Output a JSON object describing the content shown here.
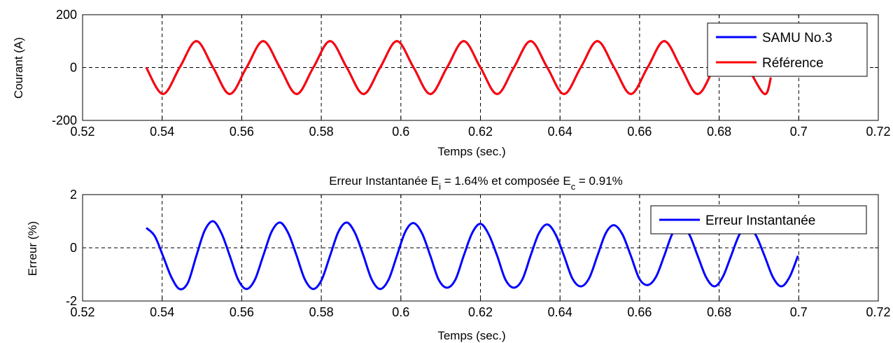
{
  "chart_data": [
    {
      "type": "line",
      "title": "",
      "xlabel": "Temps (sec.)",
      "ylabel": "Courant (A)",
      "xlim": [
        0.52,
        0.72
      ],
      "ylim": [
        -200,
        200
      ],
      "xticks": [
        "0.52",
        "0.54",
        "0.56",
        "0.58",
        "0.6",
        "0.62",
        "0.64",
        "0.66",
        "0.68",
        "0.7",
        "0.72"
      ],
      "yticks": [
        "-200",
        "0",
        "200"
      ],
      "grid": true,
      "legend_position": "top-right",
      "series": [
        {
          "name": "SAMU No.3",
          "color": "#0000ff",
          "x": [
            0.536,
            0.5402,
            0.5444,
            0.5486,
            0.5528,
            0.557,
            0.5612,
            0.5654,
            0.5696,
            0.5738,
            0.578,
            0.5822,
            0.5864,
            0.5906,
            0.5948,
            0.599,
            0.6032,
            0.6074,
            0.6116,
            0.6158,
            0.62,
            0.6242,
            0.6284,
            0.6326,
            0.6368,
            0.641,
            0.6452,
            0.6494,
            0.6536,
            0.6578,
            0.662,
            0.6662,
            0.6704,
            0.6746,
            0.6788,
            0.683,
            0.6872,
            0.6914,
            0.693
          ],
          "y": [
            0,
            -100,
            0,
            100,
            0,
            -100,
            0,
            100,
            0,
            -100,
            0,
            100,
            0,
            -100,
            0,
            100,
            0,
            -100,
            0,
            100,
            0,
            -100,
            0,
            100,
            0,
            -100,
            0,
            100,
            0,
            -100,
            0,
            100,
            0,
            -100,
            0,
            100,
            0,
            -100,
            -38
          ]
        },
        {
          "name": "Référence",
          "color": "#ff0000",
          "x": [
            0.536,
            0.5402,
            0.5444,
            0.5486,
            0.5528,
            0.557,
            0.5612,
            0.5654,
            0.5696,
            0.5738,
            0.578,
            0.5822,
            0.5864,
            0.5906,
            0.5948,
            0.599,
            0.6032,
            0.6074,
            0.6116,
            0.6158,
            0.62,
            0.6242,
            0.6284,
            0.6326,
            0.6368,
            0.641,
            0.6452,
            0.6494,
            0.6536,
            0.6578,
            0.662,
            0.6662,
            0.6704,
            0.6746,
            0.6788,
            0.683,
            0.6872,
            0.6914,
            0.693
          ],
          "y": [
            0,
            -100,
            0,
            100,
            0,
            -100,
            0,
            100,
            0,
            -100,
            0,
            100,
            0,
            -100,
            0,
            100,
            0,
            -100,
            0,
            100,
            0,
            -100,
            0,
            100,
            0,
            -100,
            0,
            100,
            0,
            -100,
            0,
            100,
            0,
            -100,
            0,
            100,
            0,
            -100,
            -38
          ]
        }
      ]
    },
    {
      "type": "line",
      "title": {
        "part1": "Erreur Instantanée E",
        "sub1": "i",
        "part2": " = 1.64% et composée E",
        "sub2": "c",
        "part3": " = 0.91%"
      },
      "xlabel": "Temps (sec.)",
      "ylabel": "Erreur (%)",
      "xlim": [
        0.52,
        0.72
      ],
      "ylim": [
        -2,
        2
      ],
      "xticks": [
        "0.52",
        "0.54",
        "0.56",
        "0.58",
        "0.6",
        "0.62",
        "0.64",
        "0.66",
        "0.68",
        "0.7",
        "0.72"
      ],
      "yticks": [
        "-2",
        "0",
        "2"
      ],
      "grid": true,
      "legend_position": "top-right",
      "series": [
        {
          "name": "Erreur Instantanée",
          "color": "#0000ff",
          "x": [
            0.536,
            0.5381,
            0.5402,
            0.5423,
            0.5444,
            0.5465,
            0.5486,
            0.5507,
            0.5528,
            0.5549,
            0.557,
            0.5591,
            0.5612,
            0.5633,
            0.5654,
            0.5675,
            0.5696,
            0.5717,
            0.5738,
            0.5759,
            0.578,
            0.5801,
            0.5822,
            0.5843,
            0.5864,
            0.5885,
            0.5906,
            0.5927,
            0.5948,
            0.5969,
            0.599,
            0.6011,
            0.6032,
            0.6053,
            0.6074,
            0.6095,
            0.6116,
            0.6137,
            0.6158,
            0.6179,
            0.62,
            0.6221,
            0.6242,
            0.6263,
            0.6284,
            0.6305,
            0.6326,
            0.6347,
            0.6368,
            0.6389,
            0.641,
            0.6431,
            0.6452,
            0.6473,
            0.6494,
            0.6515,
            0.6536,
            0.6557,
            0.6578,
            0.6599,
            0.662,
            0.6641,
            0.6662,
            0.6683,
            0.6704,
            0.6725,
            0.6746,
            0.6767,
            0.6788,
            0.6809,
            0.683,
            0.6851,
            0.6872,
            0.6893,
            0.6914,
            0.6935,
            0.6956,
            0.6977,
            0.6998
          ],
          "y": [
            0.75,
            0.45,
            -0.3,
            -1.1,
            -1.55,
            -1.3,
            -0.3,
            0.65,
            1.0,
            0.55,
            -0.3,
            -1.2,
            -1.55,
            -1.2,
            -0.3,
            0.6,
            0.95,
            0.55,
            -0.3,
            -1.2,
            -1.55,
            -1.2,
            -0.3,
            0.6,
            0.95,
            0.55,
            -0.3,
            -1.2,
            -1.55,
            -1.2,
            -0.3,
            0.6,
            0.93,
            0.55,
            -0.3,
            -1.2,
            -1.5,
            -1.2,
            -0.3,
            0.55,
            0.9,
            0.5,
            -0.3,
            -1.2,
            -1.5,
            -1.2,
            -0.3,
            0.55,
            0.88,
            0.5,
            -0.3,
            -1.15,
            -1.45,
            -1.15,
            -0.3,
            0.55,
            0.85,
            0.5,
            -0.3,
            -1.15,
            -1.4,
            -1.1,
            -0.3,
            0.55,
            0.85,
            0.5,
            -0.3,
            -1.1,
            -1.45,
            -1.1,
            -0.3,
            0.5,
            0.85,
            0.45,
            -0.3,
            -1.1,
            -1.45,
            -1.1,
            -0.3
          ]
        }
      ]
    }
  ]
}
